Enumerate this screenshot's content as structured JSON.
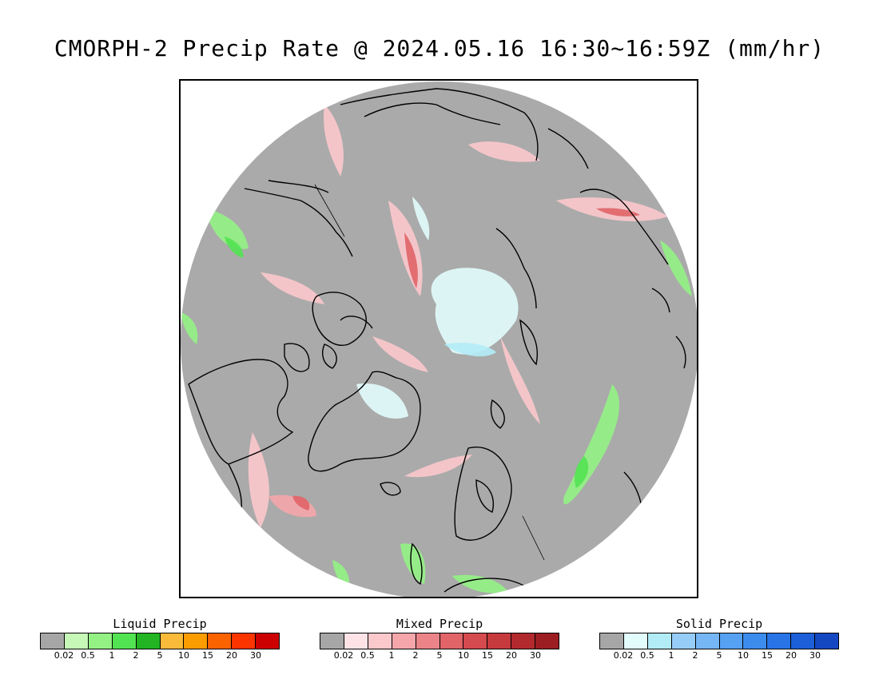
{
  "title": "CMORPH-2 Precip Rate @ 2024.05.16 16:30~16:59Z (mm/hr)",
  "map": {
    "projection": "north-polar-stereographic",
    "background_color": "#aaaaaa",
    "coastline_color": "#000000"
  },
  "legends": [
    {
      "id": "liquid",
      "title": "Liquid Precip",
      "colors": [
        "#a6a6a6",
        "#c6f9b8",
        "#94f285",
        "#52e352",
        "#22b422",
        "#fbbb3a",
        "#fb9c00",
        "#fb6200",
        "#fb3400",
        "#cc0000"
      ],
      "ticks": [
        "0.02",
        "0.5",
        "1",
        "2",
        "5",
        "10",
        "15",
        "20",
        "30"
      ]
    },
    {
      "id": "mixed",
      "title": "Mixed Precip",
      "colors": [
        "#a6a6a6",
        "#fde3e6",
        "#fbc8cc",
        "#f4a6aa",
        "#ea8488",
        "#e06468",
        "#d44a4e",
        "#c63a3e",
        "#b32a2e",
        "#9c1e22"
      ],
      "ticks": [
        "0.02",
        "0.5",
        "1",
        "2",
        "5",
        "10",
        "15",
        "20",
        "30"
      ]
    },
    {
      "id": "solid",
      "title": "Solid Precip",
      "colors": [
        "#a6a6a6",
        "#e2fcfc",
        "#b2ecf7",
        "#96cdf8",
        "#76b6f5",
        "#56a1f2",
        "#3c8cee",
        "#2874e6",
        "#1c5fd8",
        "#1448c2"
      ],
      "ticks": [
        "0.02",
        "0.5",
        "1",
        "2",
        "5",
        "10",
        "15",
        "20",
        "30"
      ]
    }
  ]
}
